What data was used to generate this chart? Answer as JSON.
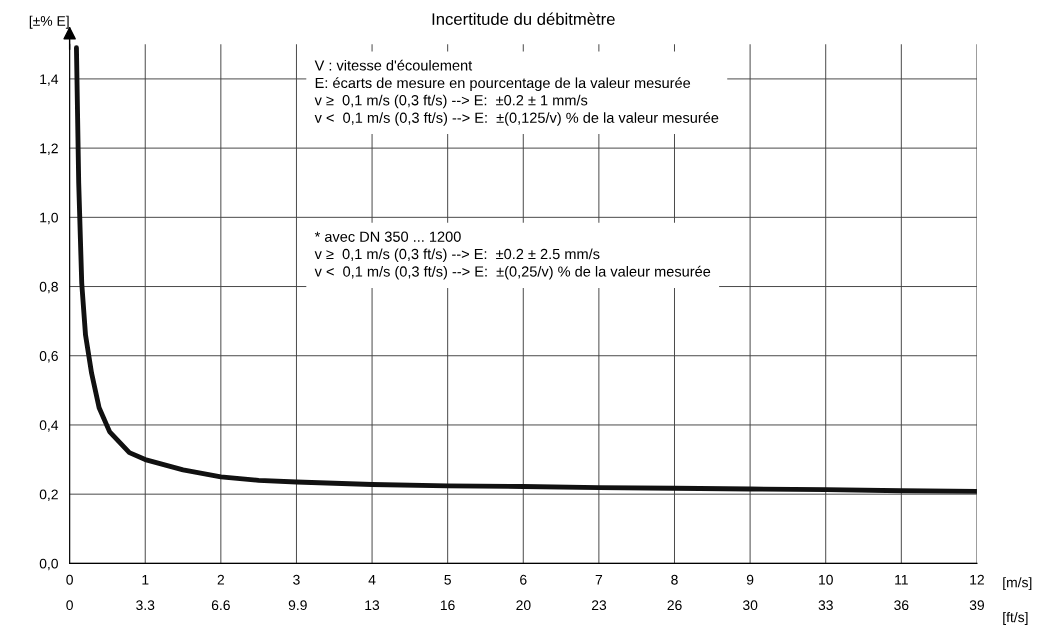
{
  "chart_data": {
    "type": "line",
    "title": "Incertitude du débitmètre",
    "ylabel": "[±% E]",
    "xlabel": "[m/s]",
    "x2label": "[ft/s]",
    "x": [
      0.09,
      0.12,
      0.16,
      0.21,
      0.29,
      0.39,
      0.53,
      0.79,
      1,
      1.5,
      2,
      2.5,
      3,
      4,
      5,
      6,
      7,
      8,
      9,
      10,
      11,
      12
    ],
    "series": [
      {
        "color": "#111111",
        "values": [
          1.49,
          1.1,
          0.81,
          0.66,
          0.55,
          0.45,
          0.38,
          0.32,
          0.3,
          0.27,
          0.25,
          0.24,
          0.235,
          0.228,
          0.224,
          0.222,
          0.219,
          0.217,
          0.215,
          0.213,
          0.21,
          0.208
        ]
      }
    ],
    "xlim": [
      0,
      12
    ],
    "xticks": [
      0,
      1,
      2,
      3,
      4,
      5,
      6,
      7,
      8,
      9,
      10,
      11,
      12
    ],
    "x2lim": [
      0,
      39.37
    ],
    "x2ticks": [
      0,
      {
        "value": 3.281,
        "label": "3.3"
      },
      {
        "value": 6.562,
        "label": "6.6"
      },
      9.9,
      {
        "value": 13.12,
        "label": "13"
      },
      {
        "value": 16.4,
        "label": "16"
      },
      {
        "value": 19.69,
        "label": "20"
      },
      {
        "value": 22.97,
        "label": "23"
      },
      {
        "value": 26.25,
        "label": "26"
      },
      {
        "value": 29.53,
        "label": "30"
      },
      {
        "value": 32.81,
        "label": "33"
      },
      {
        "value": 36.09,
        "label": "36"
      },
      {
        "value": 39.37,
        "label": "39"
      }
    ],
    "ylim": [
      0,
      1.5
    ],
    "yticks": [
      {
        "value": 0,
        "label": "0,0"
      },
      {
        "value": 0.2,
        "label": "0,2"
      },
      {
        "value": 0.4,
        "label": "0,4"
      },
      {
        "value": 0.6,
        "label": "0,6"
      },
      {
        "value": 0.8,
        "label": "0,8"
      },
      {
        "value": 1.0,
        "label": "1,0"
      },
      {
        "value": 1.2,
        "label": "1,2"
      },
      {
        "value": 1.4,
        "label": "1,4"
      }
    ],
    "grid": true,
    "line_style": "solid",
    "marker": "none",
    "annotations": [
      "V : vitesse d'écoulement\nE: écarts de mesure en pourcentage de la valeur mesurée\nv ≥  0,1 m/s (0,3 ft/s) --> E:  ±0.2 ± 1 mm/s\nv <  0,1 m/s (0,3 ft/s) --> E:  ±(0,125/v) % de la valeur mesurée",
      "* avec DN 350 ... 1200\nv ≥  0,1 m/s (0,3 ft/s) --> E:  ±0.2 ± 2.5 mm/s\nv <  0,1 m/s (0,3 ft/s) --> E:  ±(0,25/v) % de la valeur mesurée"
    ]
  }
}
